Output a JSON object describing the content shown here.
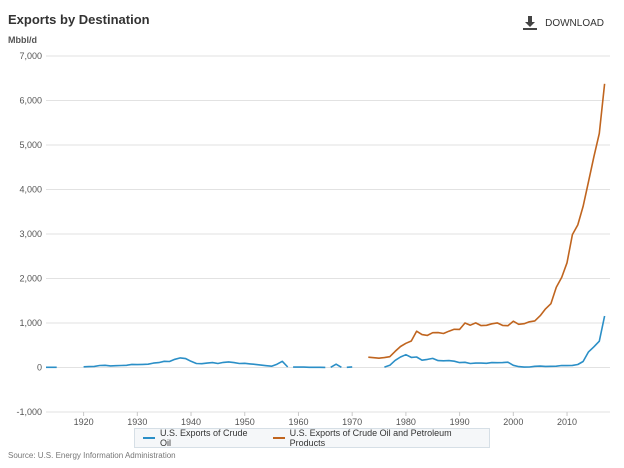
{
  "header": {
    "title": "Exports by Destination",
    "unit": "Mbbl/d",
    "download_label": "DOWNLOAD",
    "download_icon": "download-icon"
  },
  "footer": {
    "source": "Source: U.S. Energy Information Administration"
  },
  "colors": {
    "crude": "#2b8fc7",
    "products": "#c0651f",
    "grid": "#e2e2e2"
  },
  "chart_data": {
    "type": "line",
    "title": "Exports by Destination",
    "ylabel": "Mbbl/d",
    "ylim": [
      -1000,
      7000
    ],
    "xlim": [
      1913,
      2018
    ],
    "yticks": [
      -1000,
      0,
      1000,
      2000,
      3000,
      4000,
      5000,
      6000,
      7000
    ],
    "ytick_labels": [
      "-1,000",
      "0",
      "1,000",
      "2,000",
      "3,000",
      "4,000",
      "5,000",
      "6,000",
      "7,000"
    ],
    "xticks": [
      1920,
      1930,
      1940,
      1950,
      1960,
      1970,
      1980,
      1990,
      2000,
      2010
    ],
    "xtick_labels": [
      "1920",
      "1930",
      "1940",
      "1950",
      "1960",
      "1970",
      "1980",
      "1990",
      "2000",
      "2010"
    ],
    "grid": true,
    "legend_position": "bottom",
    "series": [
      {
        "name": "U.S. Exports of Crude Oil",
        "color": "#2b8fc7",
        "segments": [
          [
            [
              1913,
              5
            ],
            [
              1914,
              5
            ],
            [
              1915,
              5
            ]
          ],
          [
            [
              1920,
              15
            ],
            [
              1921,
              20
            ],
            [
              1922,
              25
            ],
            [
              1923,
              45
            ],
            [
              1924,
              50
            ],
            [
              1925,
              35
            ],
            [
              1926,
              40
            ],
            [
              1927,
              45
            ],
            [
              1928,
              50
            ],
            [
              1929,
              70
            ],
            [
              1930,
              65
            ],
            [
              1931,
              70
            ],
            [
              1932,
              75
            ],
            [
              1933,
              100
            ],
            [
              1934,
              110
            ],
            [
              1935,
              140
            ],
            [
              1936,
              135
            ],
            [
              1937,
              185
            ],
            [
              1938,
              215
            ],
            [
              1939,
              200
            ],
            [
              1940,
              140
            ],
            [
              1941,
              90
            ],
            [
              1942,
              85
            ],
            [
              1943,
              100
            ],
            [
              1944,
              110
            ],
            [
              1945,
              90
            ],
            [
              1946,
              115
            ],
            [
              1947,
              125
            ],
            [
              1948,
              110
            ],
            [
              1949,
              90
            ],
            [
              1950,
              95
            ],
            [
              1951,
              80
            ],
            [
              1952,
              70
            ],
            [
              1953,
              55
            ],
            [
              1954,
              40
            ],
            [
              1955,
              30
            ],
            [
              1956,
              75
            ],
            [
              1957,
              140
            ],
            [
              1958,
              12
            ]
          ],
          [
            [
              1959,
              8
            ],
            [
              1960,
              8
            ],
            [
              1961,
              8
            ],
            [
              1962,
              5
            ],
            [
              1963,
              5
            ],
            [
              1964,
              5
            ],
            [
              1965,
              3
            ]
          ],
          [
            [
              1966,
              4
            ],
            [
              1967,
              75
            ],
            [
              1968,
              5
            ]
          ],
          [
            [
              1969,
              4
            ],
            [
              1970,
              14
            ]
          ],
          [
            [
              1976,
              8
            ],
            [
              1977,
              50
            ],
            [
              1978,
              160
            ],
            [
              1979,
              235
            ],
            [
              1980,
              287
            ],
            [
              1981,
              228
            ],
            [
              1982,
              236
            ],
            [
              1983,
              164
            ],
            [
              1984,
              181
            ],
            [
              1985,
              204
            ],
            [
              1986,
              154
            ],
            [
              1987,
              151
            ],
            [
              1988,
              155
            ],
            [
              1989,
              142
            ],
            [
              1990,
              109
            ],
            [
              1991,
              116
            ],
            [
              1992,
              89
            ],
            [
              1993,
              98
            ],
            [
              1994,
              99
            ],
            [
              1995,
              95
            ],
            [
              1996,
              110
            ],
            [
              1997,
              108
            ],
            [
              1998,
              110
            ],
            [
              1999,
              118
            ],
            [
              2000,
              50
            ],
            [
              2001,
              20
            ],
            [
              2002,
              9
            ],
            [
              2003,
              12
            ],
            [
              2004,
              27
            ],
            [
              2005,
              32
            ],
            [
              2006,
              25
            ],
            [
              2007,
              27
            ],
            [
              2008,
              29
            ],
            [
              2009,
              44
            ],
            [
              2010,
              42
            ],
            [
              2011,
              47
            ],
            [
              2012,
              67
            ],
            [
              2013,
              134
            ],
            [
              2014,
              351
            ],
            [
              2015,
              465
            ],
            [
              2016,
              591
            ],
            [
              2017,
              1158
            ]
          ]
        ]
      },
      {
        "name": "U.S. Exports of Crude Oil and Petroleum Products",
        "color": "#c0651f",
        "segments": [
          [
            [
              1973,
              231
            ],
            [
              1974,
              221
            ],
            [
              1975,
              209
            ],
            [
              1976,
              223
            ],
            [
              1977,
              243
            ],
            [
              1978,
              362
            ],
            [
              1979,
              471
            ],
            [
              1980,
              544
            ],
            [
              1981,
              595
            ],
            [
              1982,
              815
            ],
            [
              1983,
              739
            ],
            [
              1984,
              722
            ],
            [
              1985,
              781
            ],
            [
              1986,
              785
            ],
            [
              1987,
              764
            ],
            [
              1988,
              815
            ],
            [
              1989,
              859
            ],
            [
              1990,
              857
            ],
            [
              1991,
              1001
            ],
            [
              1992,
              950
            ],
            [
              1993,
              1003
            ],
            [
              1994,
              942
            ],
            [
              1995,
              949
            ],
            [
              1996,
              981
            ],
            [
              1997,
              1003
            ],
            [
              1998,
              945
            ],
            [
              1999,
              940
            ],
            [
              2000,
              1040
            ],
            [
              2001,
              971
            ],
            [
              2002,
              984
            ],
            [
              2003,
              1027
            ],
            [
              2004,
              1048
            ],
            [
              2005,
              1165
            ],
            [
              2006,
              1317
            ],
            [
              2007,
              1433
            ],
            [
              2008,
              1802
            ],
            [
              2009,
              2024
            ],
            [
              2010,
              2353
            ],
            [
              2011,
              2986
            ],
            [
              2012,
              3205
            ],
            [
              2013,
              3621
            ],
            [
              2014,
              4176
            ],
            [
              2015,
              4738
            ],
            [
              2016,
              5261
            ],
            [
              2017,
              6376
            ]
          ]
        ]
      }
    ]
  }
}
